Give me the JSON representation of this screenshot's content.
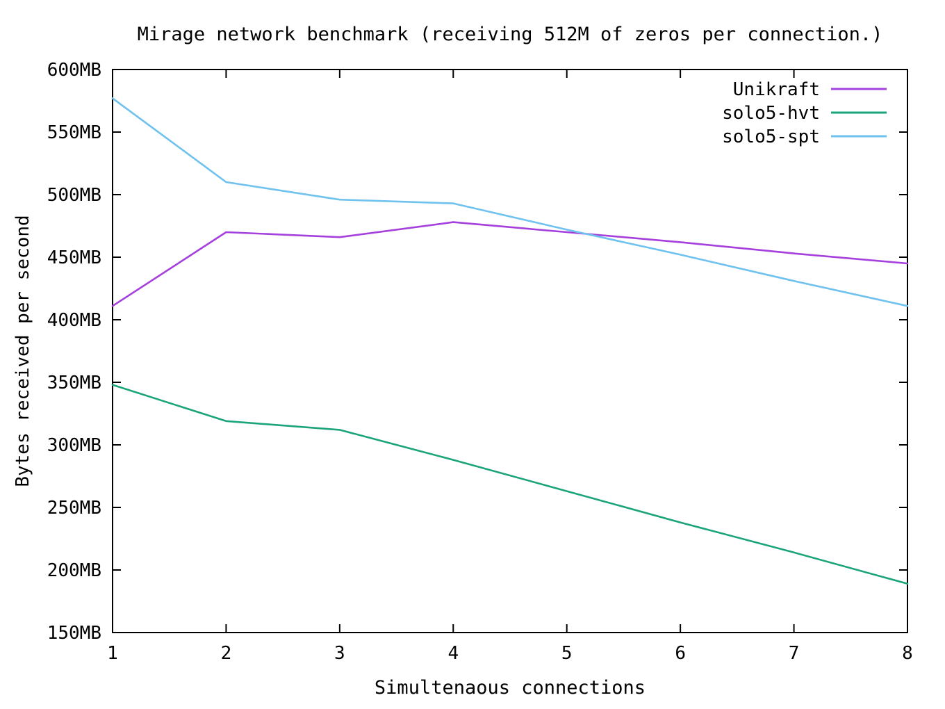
{
  "chart_data": {
    "type": "line",
    "title": "Mirage network benchmark (receiving 512M of zeros per connection.)",
    "xlabel": "Simultenaous connections",
    "ylabel": "Bytes received per second",
    "x": [
      1,
      2,
      3,
      4,
      5,
      6,
      7,
      8
    ],
    "xlim": [
      1,
      8
    ],
    "ylim": [
      150,
      600
    ],
    "xtick_values": [
      1,
      2,
      3,
      4,
      5,
      6,
      7,
      8
    ],
    "xtick_labels": [
      "1",
      "2",
      "3",
      "4",
      "5",
      "6",
      "7",
      "8"
    ],
    "ytick_values": [
      150,
      200,
      250,
      300,
      350,
      400,
      450,
      500,
      550,
      600
    ],
    "ytick_labels": [
      "150MB",
      "200MB",
      "250MB",
      "300MB",
      "350MB",
      "400MB",
      "450MB",
      "500MB",
      "550MB",
      "600MB"
    ],
    "y_unit": "MB",
    "grid": false,
    "legend_position": "top-right-inside",
    "axis_color": "#000000",
    "background_color": "#ffffff",
    "series": [
      {
        "name": "Unikraft",
        "color": "#a640dd",
        "values": [
          411,
          470,
          466,
          478,
          470,
          462,
          453,
          445
        ]
      },
      {
        "name": "solo5-hvt",
        "color": "#1ba47a",
        "values": [
          348,
          319,
          312,
          288,
          263,
          238,
          214,
          189
        ]
      },
      {
        "name": "solo5-spt",
        "color": "#6fc1ee",
        "values": [
          577,
          510,
          496,
          493,
          472,
          452,
          431,
          411
        ]
      }
    ]
  }
}
